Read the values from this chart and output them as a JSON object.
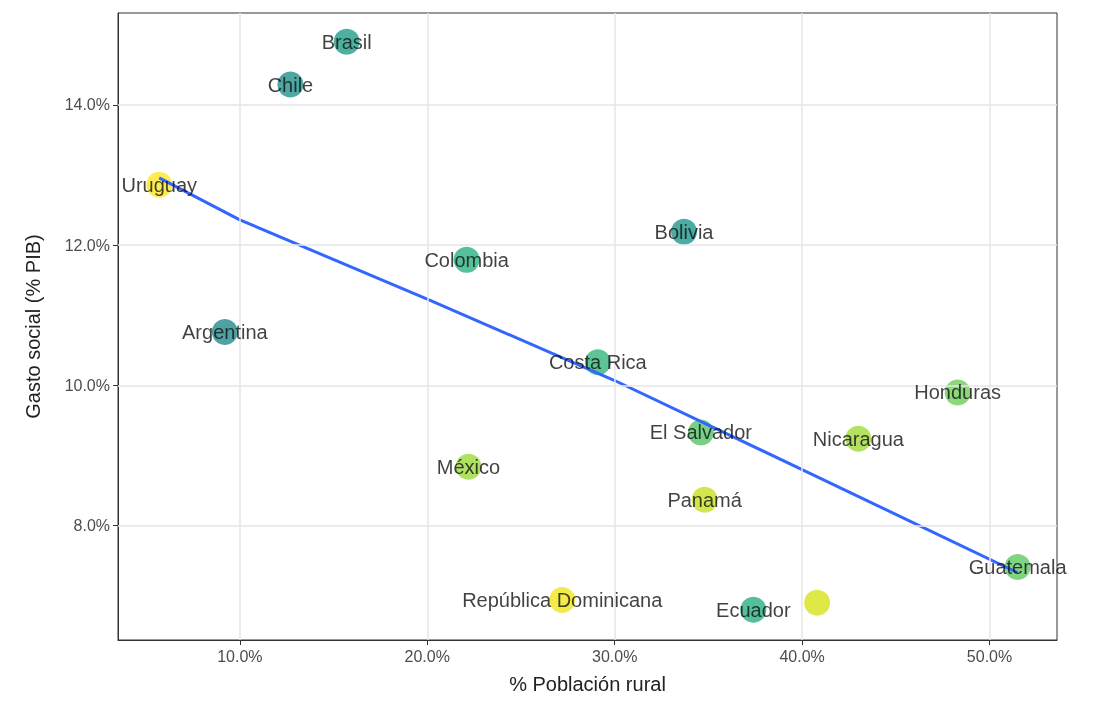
{
  "chart_data": {
    "type": "scatter",
    "xlabel": "% Población rural",
    "ylabel": "Gasto social (% PIB)",
    "xlim": [
      3.5,
      53.6
    ],
    "ylim": [
      6.37,
      15.31
    ],
    "xticks": [
      {
        "value": 10,
        "label": "10.0%"
      },
      {
        "value": 20,
        "label": "20.0%"
      },
      {
        "value": 30,
        "label": "30.0%"
      },
      {
        "value": 40,
        "label": "40.0%"
      },
      {
        "value": 50,
        "label": "50.0%"
      }
    ],
    "yticks": [
      {
        "value": 8,
        "label": "8.0%"
      },
      {
        "value": 10,
        "label": "10.0%"
      },
      {
        "value": 12,
        "label": "12.0%"
      },
      {
        "value": 14,
        "label": "14.0%"
      }
    ],
    "grid": true,
    "series": [
      {
        "x": [
          15.7,
          12.7,
          5.7,
          33.7,
          22.1,
          9.2,
          29.1,
          48.3,
          34.6,
          43.0,
          22.2,
          34.8,
          51.5,
          27.2,
          37.4,
          40.8
        ],
        "values": [
          14.9,
          14.29,
          12.86,
          12.19,
          11.79,
          10.76,
          10.33,
          9.9,
          9.33,
          9.24,
          8.84,
          8.37,
          7.41,
          6.94,
          6.8,
          6.9
        ],
        "colors": [
          "#1f9e89",
          "#21918c",
          "#fde725",
          "#1f968b",
          "#2ab07f",
          "#238a8d",
          "#35b779",
          "#6ece58",
          "#54c568",
          "#a0da39",
          "#9bd93c",
          "#c8e020",
          "#5ec962",
          "#f1e51d",
          "#29af7f",
          "#d8e219"
        ]
      },
      {
        "type": "line",
        "color": "#3366ff",
        "x": [
          5.7,
          10,
          20,
          30,
          40,
          51.5
        ],
        "values": [
          12.96,
          12.36,
          11.23,
          10.07,
          8.8,
          7.33
        ]
      }
    ],
    "annotations": [
      {
        "text": "Brasil",
        "x": 15.7,
        "y": 14.9
      },
      {
        "text": "Chile",
        "x": 12.7,
        "y": 14.29
      },
      {
        "text": "Uruguay",
        "x": 5.7,
        "y": 12.86
      },
      {
        "text": "Bolivia",
        "x": 33.7,
        "y": 12.19
      },
      {
        "text": "Colombia",
        "x": 22.1,
        "y": 11.79
      },
      {
        "text": "Argentina",
        "x": 9.2,
        "y": 10.76
      },
      {
        "text": "Costa Rica",
        "x": 29.1,
        "y": 10.33
      },
      {
        "text": "Honduras",
        "x": 48.3,
        "y": 9.9
      },
      {
        "text": "El Salvador",
        "x": 34.6,
        "y": 9.33
      },
      {
        "text": "Nicaragua",
        "x": 43.0,
        "y": 9.24
      },
      {
        "text": "México",
        "x": 22.2,
        "y": 8.84
      },
      {
        "text": "Panamá",
        "x": 34.8,
        "y": 8.37
      },
      {
        "text": "Guatemala",
        "x": 51.5,
        "y": 7.41
      },
      {
        "text": "República Dominicana",
        "x": 27.2,
        "y": 6.94
      },
      {
        "text": "Ecuador",
        "x": 37.4,
        "y": 6.8
      }
    ]
  }
}
